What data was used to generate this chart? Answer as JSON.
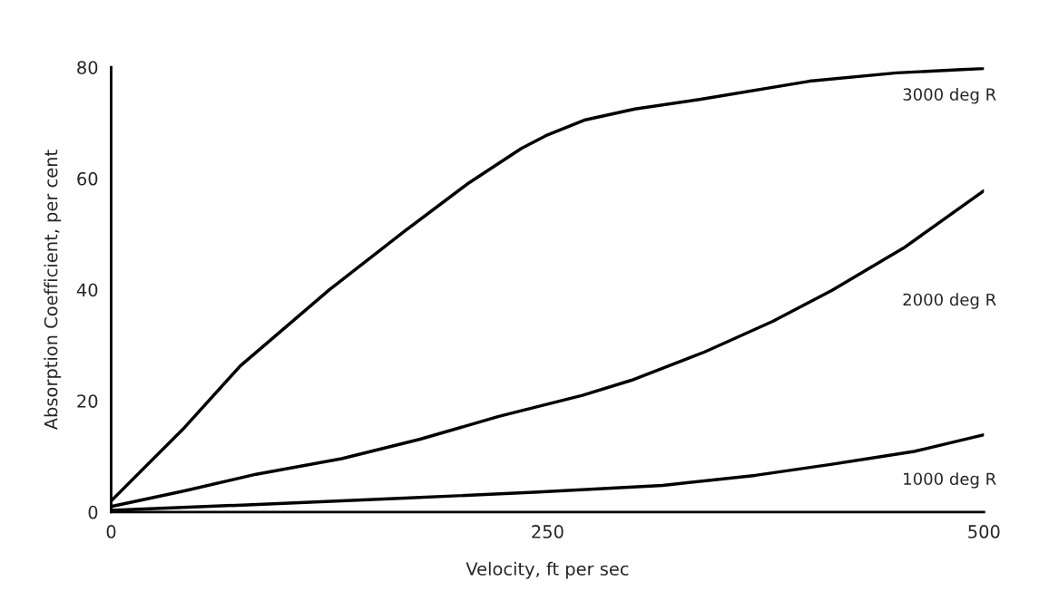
{
  "chart_data": {
    "type": "line",
    "xlabel": "Velocity, ft per sec",
    "ylabel": "Absorption Coefficient, per cent",
    "xlim": [
      0,
      500
    ],
    "ylim": [
      0,
      80
    ],
    "xticks": [
      0,
      250,
      500
    ],
    "yticks": [
      0,
      20,
      40,
      60,
      80
    ],
    "grid": false,
    "legend": false,
    "marker": "none",
    "line_style": "solid",
    "series": [
      {
        "name": "3000 deg R",
        "color": "#000000",
        "x": [
          0,
          42,
          74,
          125,
          168,
          204,
          235,
          249,
          271,
          300,
          337,
          400,
          450,
          500
        ],
        "values": [
          2,
          15.2,
          26.3,
          40,
          50.5,
          59,
          65.4,
          67.7,
          70.5,
          72.5,
          74.2,
          77.5,
          79,
          79.8
        ]
      },
      {
        "name": "2000 deg R",
        "color": "#000000",
        "x": [
          0,
          42,
          83,
          132,
          177,
          222,
          270,
          298,
          340,
          379,
          413,
          454,
          500
        ],
        "values": [
          1,
          3.8,
          6.8,
          9.6,
          13.1,
          17.2,
          21,
          23.7,
          28.8,
          34.3,
          39.9,
          47.5,
          57.8
        ]
      },
      {
        "name": "1000 deg R",
        "color": "#000000",
        "x": [
          0,
          78,
          168,
          245,
          316,
          369,
          413,
          460,
          500
        ],
        "values": [
          0.3,
          1.3,
          2.5,
          3.6,
          4.8,
          6.6,
          8.6,
          10.9,
          13.9
        ]
      }
    ]
  }
}
